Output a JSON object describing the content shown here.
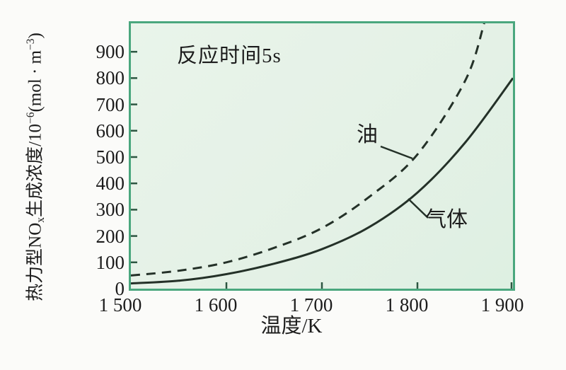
{
  "colors": {
    "border_green": "#4aa77e",
    "plot_bg": "#e4f1e6",
    "ink": "#243128",
    "tick": "#2d5742",
    "text": "#1c1c1c",
    "page_bg": "#fbfbf9"
  },
  "figure": {
    "y_axis_title_parts": [
      {
        "t": "热力型NO"
      },
      {
        "t": "x",
        "s": "sub"
      },
      {
        "t": "生成浓度/10"
      },
      {
        "t": "−6",
        "s": "sup"
      },
      {
        "t": "(mol · m"
      },
      {
        "t": "−3",
        "s": "sup"
      },
      {
        "t": ")"
      }
    ]
  },
  "chart_data": {
    "type": "line",
    "title": "",
    "annotation": "反应时间5s",
    "xlabel": "温度/K",
    "ylabel": "热力型NOx生成浓度/10^-6 (mol·m^-3)",
    "xlim": [
      1500,
      1900
    ],
    "ylim": [
      0,
      1008
    ],
    "grid": false,
    "legend": "inline-labels",
    "x_ticks": [
      1500,
      1600,
      1700,
      1800,
      1900
    ],
    "x_tick_labels": [
      "1 500",
      "1 600",
      "1 700",
      "1 800",
      "1 900"
    ],
    "y_ticks": [
      0,
      100,
      200,
      300,
      400,
      500,
      600,
      700,
      800,
      900
    ],
    "series": [
      {
        "name": "油",
        "fuel": "oil",
        "line_style": "dashed",
        "x": [
          1500,
          1550,
          1600,
          1650,
          1700,
          1750,
          1800,
          1850,
          1870
        ],
        "y": [
          50,
          68,
          100,
          155,
          230,
          350,
          510,
          790,
          1010
        ]
      },
      {
        "name": "气体",
        "fuel": "gas",
        "line_style": "solid",
        "x": [
          1500,
          1550,
          1600,
          1650,
          1700,
          1750,
          1800,
          1850,
          1900
        ],
        "y": [
          20,
          30,
          55,
          95,
          150,
          235,
          365,
          555,
          800
        ]
      }
    ]
  }
}
